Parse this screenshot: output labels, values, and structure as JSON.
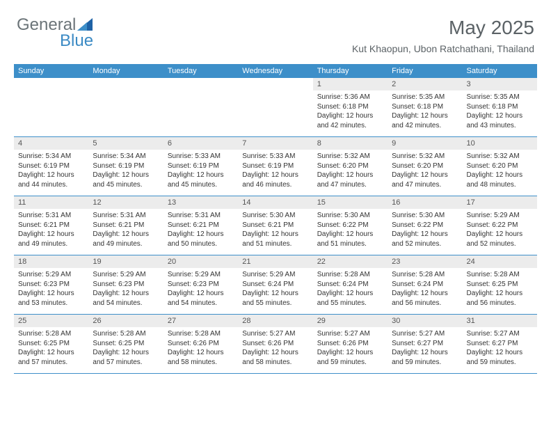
{
  "logo": {
    "part1": "General",
    "part2": "Blue"
  },
  "header": {
    "month_title": "May 2025",
    "location": "Kut Khaopun, Ubon Ratchathani, Thailand"
  },
  "colors": {
    "accent": "#3d8fc9",
    "header_text": "#5b6266",
    "logo_gray": "#6b7478",
    "daynum_bg": "#ececec",
    "body_text": "#333333"
  },
  "day_headers": [
    "Sunday",
    "Monday",
    "Tuesday",
    "Wednesday",
    "Thursday",
    "Friday",
    "Saturday"
  ],
  "weeks": [
    [
      null,
      null,
      null,
      null,
      {
        "n": "1",
        "sr": "Sunrise: 5:36 AM",
        "ss": "Sunset: 6:18 PM",
        "d1": "Daylight: 12 hours",
        "d2": "and 42 minutes."
      },
      {
        "n": "2",
        "sr": "Sunrise: 5:35 AM",
        "ss": "Sunset: 6:18 PM",
        "d1": "Daylight: 12 hours",
        "d2": "and 42 minutes."
      },
      {
        "n": "3",
        "sr": "Sunrise: 5:35 AM",
        "ss": "Sunset: 6:18 PM",
        "d1": "Daylight: 12 hours",
        "d2": "and 43 minutes."
      }
    ],
    [
      {
        "n": "4",
        "sr": "Sunrise: 5:34 AM",
        "ss": "Sunset: 6:19 PM",
        "d1": "Daylight: 12 hours",
        "d2": "and 44 minutes."
      },
      {
        "n": "5",
        "sr": "Sunrise: 5:34 AM",
        "ss": "Sunset: 6:19 PM",
        "d1": "Daylight: 12 hours",
        "d2": "and 45 minutes."
      },
      {
        "n": "6",
        "sr": "Sunrise: 5:33 AM",
        "ss": "Sunset: 6:19 PM",
        "d1": "Daylight: 12 hours",
        "d2": "and 45 minutes."
      },
      {
        "n": "7",
        "sr": "Sunrise: 5:33 AM",
        "ss": "Sunset: 6:19 PM",
        "d1": "Daylight: 12 hours",
        "d2": "and 46 minutes."
      },
      {
        "n": "8",
        "sr": "Sunrise: 5:32 AM",
        "ss": "Sunset: 6:20 PM",
        "d1": "Daylight: 12 hours",
        "d2": "and 47 minutes."
      },
      {
        "n": "9",
        "sr": "Sunrise: 5:32 AM",
        "ss": "Sunset: 6:20 PM",
        "d1": "Daylight: 12 hours",
        "d2": "and 47 minutes."
      },
      {
        "n": "10",
        "sr": "Sunrise: 5:32 AM",
        "ss": "Sunset: 6:20 PM",
        "d1": "Daylight: 12 hours",
        "d2": "and 48 minutes."
      }
    ],
    [
      {
        "n": "11",
        "sr": "Sunrise: 5:31 AM",
        "ss": "Sunset: 6:21 PM",
        "d1": "Daylight: 12 hours",
        "d2": "and 49 minutes."
      },
      {
        "n": "12",
        "sr": "Sunrise: 5:31 AM",
        "ss": "Sunset: 6:21 PM",
        "d1": "Daylight: 12 hours",
        "d2": "and 49 minutes."
      },
      {
        "n": "13",
        "sr": "Sunrise: 5:31 AM",
        "ss": "Sunset: 6:21 PM",
        "d1": "Daylight: 12 hours",
        "d2": "and 50 minutes."
      },
      {
        "n": "14",
        "sr": "Sunrise: 5:30 AM",
        "ss": "Sunset: 6:21 PM",
        "d1": "Daylight: 12 hours",
        "d2": "and 51 minutes."
      },
      {
        "n": "15",
        "sr": "Sunrise: 5:30 AM",
        "ss": "Sunset: 6:22 PM",
        "d1": "Daylight: 12 hours",
        "d2": "and 51 minutes."
      },
      {
        "n": "16",
        "sr": "Sunrise: 5:30 AM",
        "ss": "Sunset: 6:22 PM",
        "d1": "Daylight: 12 hours",
        "d2": "and 52 minutes."
      },
      {
        "n": "17",
        "sr": "Sunrise: 5:29 AM",
        "ss": "Sunset: 6:22 PM",
        "d1": "Daylight: 12 hours",
        "d2": "and 52 minutes."
      }
    ],
    [
      {
        "n": "18",
        "sr": "Sunrise: 5:29 AM",
        "ss": "Sunset: 6:23 PM",
        "d1": "Daylight: 12 hours",
        "d2": "and 53 minutes."
      },
      {
        "n": "19",
        "sr": "Sunrise: 5:29 AM",
        "ss": "Sunset: 6:23 PM",
        "d1": "Daylight: 12 hours",
        "d2": "and 54 minutes."
      },
      {
        "n": "20",
        "sr": "Sunrise: 5:29 AM",
        "ss": "Sunset: 6:23 PM",
        "d1": "Daylight: 12 hours",
        "d2": "and 54 minutes."
      },
      {
        "n": "21",
        "sr": "Sunrise: 5:29 AM",
        "ss": "Sunset: 6:24 PM",
        "d1": "Daylight: 12 hours",
        "d2": "and 55 minutes."
      },
      {
        "n": "22",
        "sr": "Sunrise: 5:28 AM",
        "ss": "Sunset: 6:24 PM",
        "d1": "Daylight: 12 hours",
        "d2": "and 55 minutes."
      },
      {
        "n": "23",
        "sr": "Sunrise: 5:28 AM",
        "ss": "Sunset: 6:24 PM",
        "d1": "Daylight: 12 hours",
        "d2": "and 56 minutes."
      },
      {
        "n": "24",
        "sr": "Sunrise: 5:28 AM",
        "ss": "Sunset: 6:25 PM",
        "d1": "Daylight: 12 hours",
        "d2": "and 56 minutes."
      }
    ],
    [
      {
        "n": "25",
        "sr": "Sunrise: 5:28 AM",
        "ss": "Sunset: 6:25 PM",
        "d1": "Daylight: 12 hours",
        "d2": "and 57 minutes."
      },
      {
        "n": "26",
        "sr": "Sunrise: 5:28 AM",
        "ss": "Sunset: 6:25 PM",
        "d1": "Daylight: 12 hours",
        "d2": "and 57 minutes."
      },
      {
        "n": "27",
        "sr": "Sunrise: 5:28 AM",
        "ss": "Sunset: 6:26 PM",
        "d1": "Daylight: 12 hours",
        "d2": "and 58 minutes."
      },
      {
        "n": "28",
        "sr": "Sunrise: 5:27 AM",
        "ss": "Sunset: 6:26 PM",
        "d1": "Daylight: 12 hours",
        "d2": "and 58 minutes."
      },
      {
        "n": "29",
        "sr": "Sunrise: 5:27 AM",
        "ss": "Sunset: 6:26 PM",
        "d1": "Daylight: 12 hours",
        "d2": "and 59 minutes."
      },
      {
        "n": "30",
        "sr": "Sunrise: 5:27 AM",
        "ss": "Sunset: 6:27 PM",
        "d1": "Daylight: 12 hours",
        "d2": "and 59 minutes."
      },
      {
        "n": "31",
        "sr": "Sunrise: 5:27 AM",
        "ss": "Sunset: 6:27 PM",
        "d1": "Daylight: 12 hours",
        "d2": "and 59 minutes."
      }
    ]
  ]
}
